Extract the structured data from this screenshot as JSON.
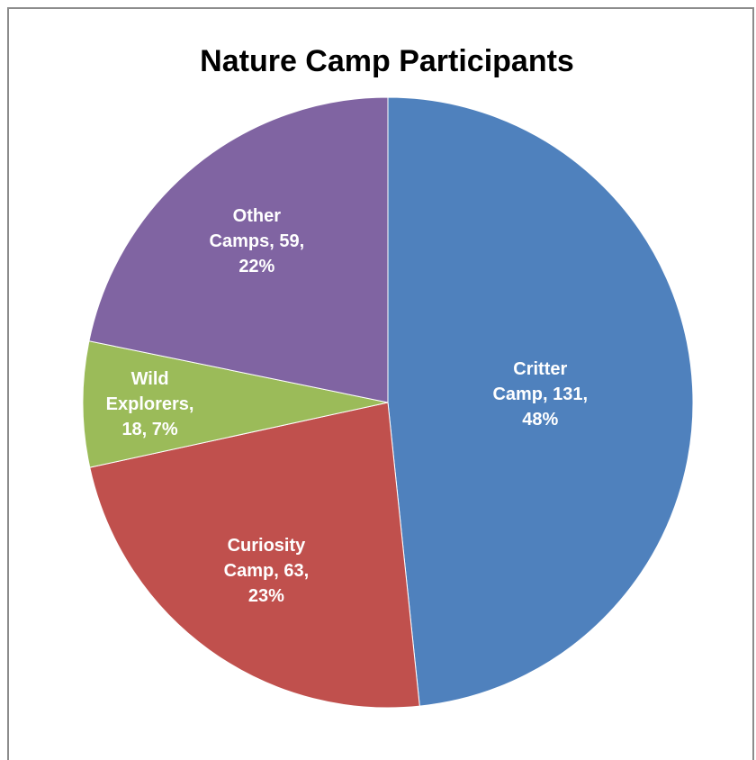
{
  "chart_data": {
    "type": "pie",
    "title": "Nature Camp Participants",
    "categories": [
      "Critter Camp",
      "Curiosity Camp",
      "Wild Explorers",
      "Other Camps"
    ],
    "values": [
      131,
      63,
      18,
      59
    ],
    "value_labels": [
      "Critter Camp, 131, 48%",
      "Curiosity Camp, 63, 23%",
      "Wild Explorers, 18, 7%",
      "Other Camps, 59, 22%"
    ],
    "colors": [
      "#4f81bd",
      "#c0504d",
      "#9bbb59",
      "#8064a2"
    ]
  }
}
